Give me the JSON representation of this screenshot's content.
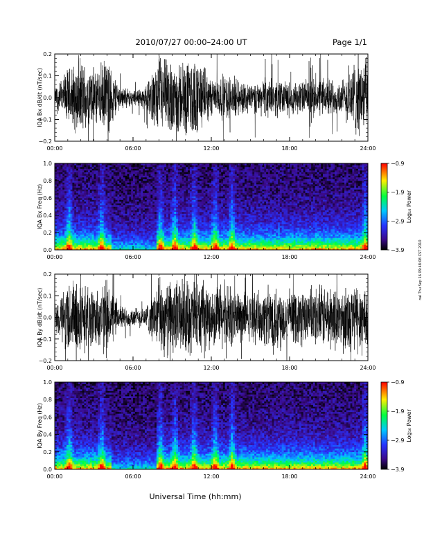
{
  "header": {
    "title": "2010/07/27  00:00–24:00 UT",
    "page": "Page 1/1"
  },
  "footer": {
    "xlabel": "Universal Time (hh:mm)",
    "side_stamp": "nal Thu Sep 16 09:48:08 CST 2010"
  },
  "chart_data": [
    {
      "type": "line",
      "name": "bx-line",
      "ylabel": "IQA Bx dB/dt (nT/sec)",
      "x_ticks": [
        "00:00",
        "06:00",
        "12:00",
        "18:00",
        "24:00"
      ],
      "y_ticks": [
        "0.2",
        "0.1",
        "0.0",
        "−0.1",
        "−0.2"
      ],
      "xlim": [
        0,
        24
      ],
      "ylim": [
        -0.2,
        0.2
      ],
      "envelope_hours": [
        0,
        1,
        2,
        3,
        4,
        5,
        6,
        7,
        8,
        9,
        10,
        11,
        12,
        13,
        14,
        15,
        16,
        17,
        18,
        19,
        20,
        21,
        22,
        23,
        24
      ],
      "envelope_amplitude": [
        0.05,
        0.15,
        0.2,
        0.15,
        0.2,
        0.06,
        0.04,
        0.06,
        0.2,
        0.2,
        0.2,
        0.2,
        0.1,
        0.12,
        0.1,
        0.08,
        0.09,
        0.1,
        0.08,
        0.09,
        0.1,
        0.1,
        0.09,
        0.2,
        0.2
      ]
    },
    {
      "type": "heatmap",
      "name": "bx-spectrogram",
      "ylabel": "IQA Bx Freq (Hz)",
      "x_ticks": [
        "00:00",
        "06:00",
        "12:00",
        "18:00",
        "24:00"
      ],
      "y_ticks": [
        "1.0",
        "0.8",
        "0.6",
        "0.4",
        "0.2",
        "0.0"
      ],
      "xlim": [
        0,
        24
      ],
      "ylim": [
        0,
        1.0
      ],
      "colorbar": {
        "label": "Log₁₀ Power",
        "ticks": [
          "−0.9",
          "−1.9",
          "−2.9",
          "−3.9"
        ],
        "range": [
          -3.9,
          -0.9
        ]
      },
      "bursts_hours": [
        1.1,
        3.6,
        8.1,
        9.2,
        10.7,
        12.3,
        13.6,
        23.8
      ]
    },
    {
      "type": "line",
      "name": "by-line",
      "ylabel": "IQA By dB/dt (nT/sec)",
      "x_ticks": [
        "00:00",
        "06:00",
        "12:00",
        "18:00",
        "24:00"
      ],
      "y_ticks": [
        "0.2",
        "0.1",
        "0.0",
        "−0.1",
        "−0.2"
      ],
      "xlim": [
        0,
        24
      ],
      "ylim": [
        -0.2,
        0.2
      ],
      "envelope_hours": [
        0,
        1,
        2,
        3,
        4,
        5,
        6,
        7,
        8,
        9,
        10,
        11,
        12,
        13,
        14,
        15,
        16,
        17,
        18,
        19,
        20,
        21,
        22,
        23,
        24
      ],
      "envelope_amplitude": [
        0.08,
        0.2,
        0.2,
        0.15,
        0.2,
        0.06,
        0.05,
        0.06,
        0.2,
        0.2,
        0.2,
        0.2,
        0.15,
        0.2,
        0.15,
        0.12,
        0.15,
        0.2,
        0.12,
        0.15,
        0.15,
        0.18,
        0.15,
        0.2,
        0.2
      ]
    },
    {
      "type": "heatmap",
      "name": "by-spectrogram",
      "ylabel": "IQA By Freq (Hz)",
      "x_ticks": [
        "00:00",
        "06:00",
        "12:00",
        "18:00",
        "24:00"
      ],
      "y_ticks": [
        "1.0",
        "0.8",
        "0.6",
        "0.4",
        "0.2",
        "0.0"
      ],
      "xlim": [
        0,
        24
      ],
      "ylim": [
        0,
        1.0
      ],
      "colorbar": {
        "label": "Log₁₀ Power",
        "ticks": [
          "−0.9",
          "−1.9",
          "−2.9",
          "−3.9"
        ],
        "range": [
          -3.9,
          -0.9
        ]
      },
      "bursts_hours": [
        1.1,
        3.6,
        8.1,
        9.2,
        10.7,
        12.3,
        13.6,
        23.8
      ]
    }
  ]
}
